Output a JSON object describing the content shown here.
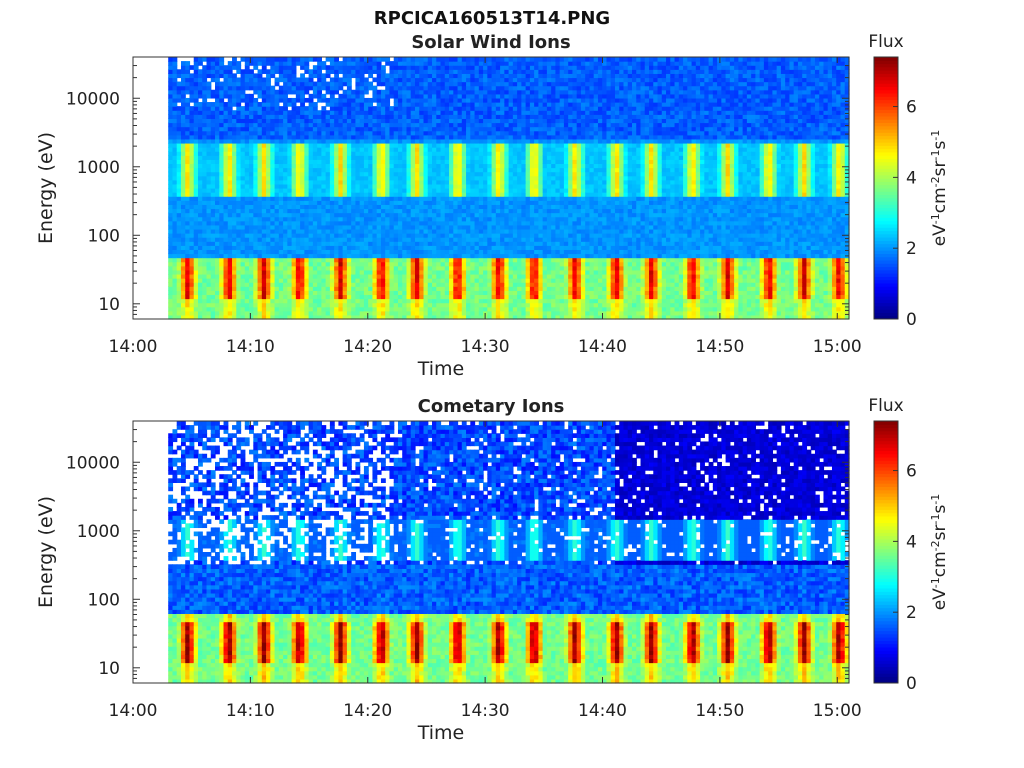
{
  "figure": {
    "title": "RPCICA160513T14.PNG"
  },
  "chart_data": [
    {
      "type": "heatmap",
      "title": "Solar Wind Ions",
      "xlabel": "Time",
      "ylabel": "Energy (eV)",
      "y_scale": "log",
      "ylim": [
        6,
        40000
      ],
      "xlim": [
        "14:00",
        "15:01"
      ],
      "x_ticks": [
        "14:00",
        "14:10",
        "14:20",
        "14:30",
        "14:40",
        "14:50",
        "15:00"
      ],
      "y_ticks": [
        "10",
        "100",
        "1000",
        "10000"
      ],
      "y_tick_values": [
        10,
        100,
        1000,
        10000
      ],
      "data_start_time": "14:03",
      "colorbar": {
        "label": "Flux",
        "unit_label": "eV-1cm-2sr-1s-1",
        "range": [
          0,
          7.4
        ],
        "ticks": [
          "0",
          "2",
          "4",
          "6"
        ],
        "tick_values": [
          0,
          2,
          4,
          6
        ],
        "colormap": "jet"
      },
      "description_bands": [
        {
          "name": "low-energy band",
          "energy_range_eV": [
            6,
            50
          ],
          "peak_flux": 6.5
        },
        {
          "name": "solar wind beam",
          "energy_range_eV": [
            400,
            2000
          ],
          "peak_flux": 4.5
        },
        {
          "name": "background",
          "energy_range_eV": [
            50,
            40000
          ],
          "flux": 2.0
        }
      ],
      "sweep_peak_times": [
        "14:04.5",
        "14:08",
        "14:11",
        "14:14",
        "14:17.5",
        "14:21",
        "14:24",
        "14:27.5",
        "14:31",
        "14:34",
        "14:37.5",
        "14:41",
        "14:44",
        "14:47.5",
        "14:50.5",
        "14:54",
        "14:57",
        "15:00"
      ]
    },
    {
      "type": "heatmap",
      "title": "Cometary Ions",
      "xlabel": "Time",
      "ylabel": "Energy (eV)",
      "y_scale": "log",
      "ylim": [
        6,
        40000
      ],
      "xlim": [
        "14:00",
        "15:01"
      ],
      "x_ticks": [
        "14:00",
        "14:10",
        "14:20",
        "14:30",
        "14:40",
        "14:50",
        "15:00"
      ],
      "y_ticks": [
        "10",
        "100",
        "1000",
        "10000"
      ],
      "y_tick_values": [
        10,
        100,
        1000,
        10000
      ],
      "data_start_time": "14:03",
      "colorbar": {
        "label": "Flux",
        "unit_label": "eV-1cm-2sr-1s-1",
        "range": [
          0,
          7.4
        ],
        "ticks": [
          "0",
          "2",
          "4",
          "6"
        ],
        "tick_values": [
          0,
          2,
          4,
          6
        ],
        "colormap": "jet"
      },
      "description_bands": [
        {
          "name": "low-energy band",
          "energy_range_eV": [
            6,
            60
          ],
          "peak_flux": 7.0
        },
        {
          "name": "high-energy sparse background",
          "energy_range_eV": [
            300,
            40000
          ],
          "flux": 0.8
        }
      ],
      "sweep_peak_times": [
        "14:04.5",
        "14:08",
        "14:11",
        "14:14",
        "14:17.5",
        "14:21",
        "14:24",
        "14:27.5",
        "14:31",
        "14:34",
        "14:37.5",
        "14:41",
        "14:44",
        "14:47.5",
        "14:50.5",
        "14:54",
        "14:57",
        "15:00"
      ]
    }
  ]
}
